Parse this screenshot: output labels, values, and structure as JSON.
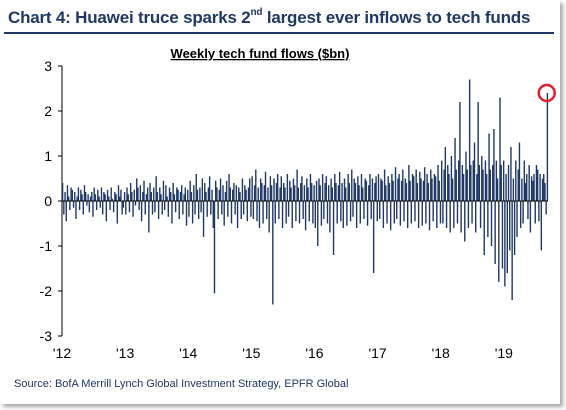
{
  "header": {
    "title_pre": "Chart 4: Huawei truce sparks 2",
    "title_sup": "nd",
    "title_post": " largest ever inflows to tech funds"
  },
  "source": "Source:  BofA Merrill Lynch Global Investment Strategy, EPFR Global",
  "colors": {
    "series": "#1f3864",
    "highlight": "#e0212b",
    "text": "#000000"
  },
  "chart_data": {
    "type": "bar",
    "title": "Weekly tech fund flows ($bn)",
    "xlabel": "",
    "ylabel": "",
    "ylim": [
      -3,
      3
    ],
    "yticks": [
      3,
      2,
      1,
      0,
      -1,
      -2,
      -3
    ],
    "xlim": [
      2012.0,
      2019.7
    ],
    "xticks": [
      {
        "x": 2012,
        "label": "'12"
      },
      {
        "x": 2013,
        "label": "'13"
      },
      {
        "x": 2014,
        "label": "'14"
      },
      {
        "x": 2015,
        "label": "'15"
      },
      {
        "x": 2016,
        "label": "'16"
      },
      {
        "x": 2017,
        "label": "'17"
      },
      {
        "x": 2018,
        "label": "'18"
      },
      {
        "x": 2019,
        "label": "'19"
      }
    ],
    "series": [
      {
        "start": 2012.0,
        "period_weeks": 1,
        "values": [
          0.4,
          -0.3,
          0.2,
          -0.45,
          0.35,
          0.1,
          -0.2,
          0.3,
          0.25,
          -0.15,
          0.2,
          -0.4,
          0.1,
          0.3,
          -0.2,
          0.25,
          0.15,
          -0.3,
          0.35,
          0.2,
          -0.1,
          0.15,
          -0.25,
          0.1,
          0.2,
          -0.35,
          0.3,
          0.15,
          -0.2,
          0.25,
          0.1,
          -0.15,
          0.3,
          -0.3,
          0.2,
          0.15,
          -0.45,
          0.25,
          0.1,
          -0.2,
          0.3,
          0.05,
          -0.25,
          0.2,
          0.15,
          -0.5,
          0.35,
          0.1,
          0.25,
          -0.3,
          -0.15,
          0.2,
          -0.3,
          0.3,
          0.15,
          -0.25,
          0.4,
          0.2,
          -0.35,
          0.25,
          -0.1,
          0.5,
          0.3,
          -0.2,
          0.35,
          -0.45,
          0.2,
          0.45,
          -0.3,
          0.15,
          0.3,
          -0.7,
          0.4,
          0.2,
          -0.3,
          0.3,
          -0.25,
          0.55,
          0.2,
          -0.4,
          0.3,
          0.15,
          -0.3,
          0.45,
          -0.2,
          0.35,
          0.1,
          -0.35,
          0.3,
          0.2,
          -0.5,
          0.4,
          0.15,
          -0.25,
          0.3,
          0.25,
          -0.4,
          0.2,
          0.35,
          -0.3,
          0.15,
          0.3,
          -0.55,
          0.25,
          -0.35,
          0.45,
          0.2,
          -0.5,
          0.35,
          -0.3,
          0.6,
          0.25,
          -0.4,
          0.3,
          -0.25,
          0.5,
          -0.8,
          0.4,
          0.2,
          -0.35,
          0.3,
          0.55,
          -0.3,
          0.25,
          -0.6,
          -2.05,
          0.45,
          0.3,
          -0.4,
          0.25,
          0.5,
          -0.3,
          0.35,
          -0.55,
          0.2,
          0.45,
          -0.35,
          0.6,
          0.3,
          -0.5,
          0.25,
          0.4,
          -0.3,
          0.35,
          -0.6,
          0.3,
          0.2,
          -0.4,
          0.5,
          -0.3,
          0.35,
          0.25,
          -0.45,
          0.3,
          0.5,
          -0.35,
          0.55,
          -0.4,
          0.35,
          0.7,
          -0.45,
          0.3,
          -0.6,
          0.5,
          0.4,
          -0.5,
          0.35,
          0.65,
          -0.4,
          0.3,
          -0.7,
          0.55,
          0.35,
          -2.3,
          0.5,
          -0.5,
          0.4,
          0.6,
          -0.4,
          0.3,
          0.55,
          -0.6,
          0.4,
          0.3,
          -0.5,
          0.6,
          -0.35,
          0.45,
          0.3,
          -0.6,
          0.5,
          0.35,
          -0.45,
          0.7,
          0.3,
          -0.5,
          0.4,
          0.55,
          -0.4,
          0.35,
          -0.65,
          0.5,
          0.3,
          -0.45,
          0.6,
          0.4,
          -0.5,
          0.35,
          -0.6,
          0.45,
          -1.0,
          0.5,
          0.35,
          -0.55,
          0.6,
          -0.4,
          0.4,
          0.55,
          -0.5,
          0.35,
          -0.7,
          0.5,
          0.3,
          -1.2,
          0.6,
          0.4,
          -0.5,
          0.35,
          0.65,
          -0.45,
          0.4,
          -0.6,
          0.5,
          0.3,
          -0.55,
          0.6,
          0.4,
          -0.45,
          0.7,
          -0.35,
          0.5,
          0.4,
          -0.6,
          0.55,
          0.35,
          -0.5,
          0.6,
          0.3,
          -0.4,
          0.5,
          0.45,
          -0.55,
          0.35,
          0.6,
          -0.4,
          0.5,
          -1.6,
          0.4,
          0.55,
          -0.45,
          0.6,
          -0.4,
          0.5,
          0.45,
          -0.6,
          0.7,
          0.35,
          -0.5,
          0.55,
          0.4,
          -0.65,
          0.6,
          0.45,
          -0.5,
          0.75,
          -0.4,
          0.5,
          0.6,
          -0.55,
          0.45,
          0.7,
          -0.45,
          0.5,
          0.4,
          -0.6,
          0.8,
          0.45,
          -0.5,
          0.6,
          0.55,
          -0.45,
          0.7,
          0.4,
          -0.6,
          0.65,
          0.5,
          -0.55,
          0.45,
          0.75,
          -0.5,
          0.6,
          0.4,
          -0.65,
          0.7,
          0.5,
          -0.45,
          0.6,
          0.55,
          -0.6,
          0.8,
          0.45,
          -0.5,
          0.9,
          -0.5,
          0.7,
          1.2,
          -0.6,
          0.8,
          0.6,
          -0.7,
          1.0,
          0.5,
          -0.6,
          1.4,
          0.7,
          -0.5,
          0.9,
          2.2,
          -0.7,
          0.8,
          0.6,
          -0.9,
          1.1,
          0.7,
          -0.6,
          2.7,
          0.8,
          -0.5,
          0.9,
          1.3,
          -0.7,
          0.6,
          2.2,
          0.8,
          -0.6,
          1.0,
          0.7,
          -1.2,
          0.9,
          0.6,
          -0.8,
          1.5,
          0.7,
          -1.0,
          0.8,
          1.6,
          -1.4,
          0.9,
          0.5,
          -1.8,
          2.3,
          0.8,
          -1.5,
          0.9,
          -1.9,
          0.6,
          -1.6,
          0.8,
          -1.1,
          1.2,
          -2.2,
          0.5,
          -1.2,
          0.9,
          -0.8,
          0.7,
          1.3,
          -0.6,
          0.5,
          -0.5,
          0.9,
          0.4,
          0.6,
          -0.4,
          0.8,
          -0.7,
          0.55,
          0.45,
          0.6,
          -0.5,
          0.8,
          0.7,
          -0.45,
          0.6,
          -1.1,
          0.5,
          0.6,
          0.4,
          -0.3,
          2.4
        ]
      }
    ],
    "highlight": {
      "x": 2019.68,
      "y": 2.4
    }
  }
}
